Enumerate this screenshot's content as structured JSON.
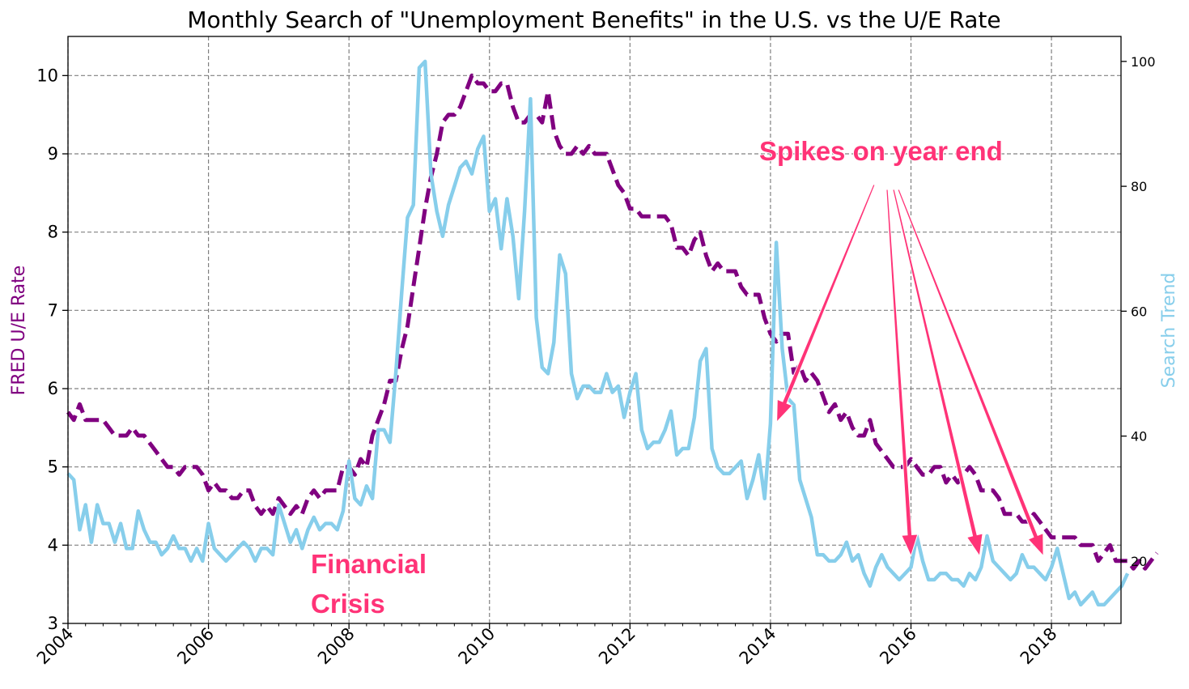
{
  "chart_data": {
    "type": "line",
    "title": "Monthly Search of \"Unemployment Benefits\" in the U.S. vs the U/E Rate",
    "xlim": [
      2004.0,
      2018.99
    ],
    "x_ticks": [
      "2004",
      "2006",
      "2008",
      "2010",
      "2012",
      "2014",
      "2016",
      "2018"
    ],
    "x_tick_values": [
      2004,
      2006,
      2008,
      2010,
      2012,
      2014,
      2016,
      2018
    ],
    "left_axis": {
      "label": "FRED U/E Rate",
      "ylim": [
        3,
        10.5
      ],
      "ticks": [
        "3",
        "4",
        "5",
        "6",
        "7",
        "8",
        "9",
        "10"
      ],
      "color": "#800080"
    },
    "right_axis": {
      "label": "Search Trend",
      "ylim": [
        10,
        104
      ],
      "ticks": [
        "20",
        "40",
        "60",
        "80",
        "100"
      ],
      "color": "#87CEEB"
    },
    "grid": true,
    "x_start": "2004-01",
    "frequency": "monthly",
    "series": [
      {
        "name": "FRED U/E Rate",
        "axis": "left",
        "style": "dashed",
        "color": "#800080",
        "values": [
          5.7,
          5.6,
          5.8,
          5.6,
          5.6,
          5.6,
          5.6,
          5.5,
          5.4,
          5.4,
          5.4,
          5.5,
          5.4,
          5.4,
          5.3,
          5.2,
          5.1,
          5.0,
          5.0,
          4.9,
          5.0,
          5.0,
          5.0,
          4.9,
          4.7,
          4.8,
          4.7,
          4.7,
          4.6,
          4.6,
          4.7,
          4.7,
          4.5,
          4.4,
          4.5,
          4.4,
          4.6,
          4.5,
          4.4,
          4.5,
          4.4,
          4.6,
          4.7,
          4.6,
          4.7,
          4.7,
          4.7,
          5.0,
          5.0,
          4.9,
          5.1,
          5.0,
          5.4,
          5.6,
          5.8,
          6.1,
          6.1,
          6.5,
          6.8,
          7.3,
          7.8,
          8.3,
          8.7,
          9.0,
          9.4,
          9.5,
          9.5,
          9.6,
          9.8,
          10.0,
          9.9,
          9.9,
          9.8,
          9.8,
          9.9,
          9.9,
          9.6,
          9.4,
          9.4,
          9.5,
          9.5,
          9.4,
          9.8,
          9.3,
          9.1,
          9.0,
          9.0,
          9.1,
          9.0,
          9.1,
          9.0,
          9.0,
          9.0,
          8.8,
          8.6,
          8.5,
          8.3,
          8.3,
          8.2,
          8.2,
          8.2,
          8.2,
          8.2,
          8.1,
          7.8,
          7.8,
          7.7,
          7.9,
          8.0,
          7.7,
          7.5,
          7.6,
          7.5,
          7.5,
          7.5,
          7.3,
          7.2,
          7.2,
          7.2,
          6.9,
          6.7,
          6.6,
          6.7,
          6.7,
          6.2,
          6.3,
          6.1,
          6.2,
          6.1,
          5.9,
          5.7,
          5.8,
          5.6,
          5.7,
          5.5,
          5.4,
          5.4,
          5.6,
          5.3,
          5.2,
          5.1,
          5.0,
          5.0,
          5.0,
          5.1,
          5.0,
          4.9,
          4.9,
          5.0,
          5.0,
          4.8,
          4.9,
          4.8,
          4.9,
          5.0,
          4.9,
          4.7,
          4.7,
          4.7,
          4.6,
          4.4,
          4.4,
          4.4,
          4.3,
          4.3,
          4.4,
          4.3,
          4.2,
          4.1,
          4.1,
          4.1,
          4.1,
          4.1,
          4.0,
          4.0,
          4.0,
          3.8,
          3.9,
          4.0,
          3.8,
          3.8,
          3.8,
          3.7,
          3.8,
          3.7,
          3.8,
          3.9
        ]
      },
      {
        "name": "Search Trend",
        "axis": "right",
        "style": "solid",
        "color": "#87CEEB",
        "values": [
          34,
          33,
          25,
          29,
          23,
          29,
          26,
          26,
          23,
          26,
          22,
          22,
          28,
          25,
          23,
          23,
          21,
          22,
          24,
          22,
          22,
          20,
          22,
          20,
          26,
          22,
          21,
          20,
          21,
          22,
          23,
          22,
          20,
          22,
          22,
          21,
          29,
          26,
          23,
          25,
          22,
          25,
          27,
          25,
          26,
          26,
          25,
          28,
          36,
          30,
          29,
          32,
          30,
          41,
          41,
          39,
          50,
          63,
          75,
          77,
          99,
          100,
          82,
          76,
          72,
          77,
          80,
          83,
          84,
          82,
          86,
          88,
          76,
          78,
          70,
          78,
          72,
          62,
          76,
          94,
          59,
          51,
          50,
          55,
          69,
          66,
          50,
          46,
          48,
          48,
          47,
          47,
          50,
          47,
          48,
          43,
          47,
          50,
          41,
          38,
          39,
          39,
          41,
          44,
          37,
          38,
          38,
          43,
          52,
          54,
          38,
          35,
          34,
          34,
          35,
          36,
          30,
          33,
          37,
          30,
          42,
          71,
          54,
          46,
          45,
          33,
          30,
          27,
          21,
          21,
          20,
          20,
          21,
          23,
          20,
          21,
          18,
          16,
          19,
          21,
          19,
          18,
          17,
          18,
          19,
          24,
          20,
          17,
          17,
          18,
          18,
          17,
          17,
          16,
          18,
          17,
          19,
          24,
          20,
          19,
          18,
          17,
          18,
          21,
          19,
          19,
          18,
          17,
          19,
          22,
          18,
          14,
          15,
          13,
          14,
          15,
          13,
          13,
          14,
          15,
          16,
          18
        ]
      }
    ],
    "annotations": [
      {
        "text": "Spikes on year end",
        "color": "#ff3377"
      },
      {
        "text": "Financial",
        "color": "#ff3377"
      },
      {
        "text": "Crisis",
        "color": "#ff3377"
      }
    ]
  }
}
